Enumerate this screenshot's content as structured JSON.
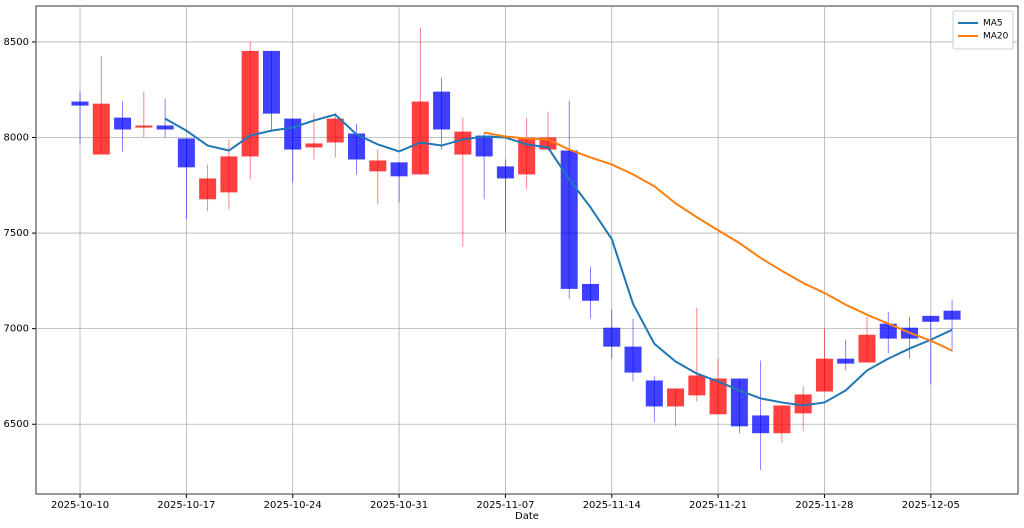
{
  "chart_data": {
    "type": "candlestick",
    "xlabel": "Date",
    "categories": [
      "2025-10-10",
      null,
      null,
      null,
      null,
      "2025-10-17",
      null,
      null,
      null,
      null,
      "2025-10-24",
      null,
      null,
      null,
      null,
      "2025-10-31",
      null,
      null,
      null,
      null,
      "2025-11-07",
      null,
      null,
      null,
      null,
      "2025-11-14",
      null,
      null,
      null,
      null,
      "2025-11-21",
      null,
      null,
      null,
      null,
      "2025-11-28",
      null,
      null,
      null,
      null,
      "2025-12-05",
      null
    ],
    "open": [
      8188,
      7911,
      8104,
      8052,
      8063,
      7995,
      7677,
      7713,
      7901,
      8453,
      8099,
      7948,
      7974,
      8021,
      7823,
      7870,
      7807,
      8240,
      7911,
      8010,
      7849,
      7807,
      7937,
      7932,
      7234,
      7005,
      6906,
      6729,
      6593,
      6651,
      6552,
      6739,
      6546,
      6453,
      6557,
      6671,
      6843,
      6823,
      7026,
      7005,
      7067,
      7094
    ],
    "high": [
      8240,
      8427,
      8188,
      8240,
      8203,
      7995,
      7859,
      7990,
      8500,
      8453,
      8099,
      8125,
      8130,
      8073,
      7937,
      7870,
      8573,
      8313,
      8104,
      8026,
      7885,
      8104,
      8135,
      8193,
      7323,
      7099,
      7052,
      6750,
      6687,
      7109,
      6843,
      6739,
      6833,
      6598,
      6697,
      7000,
      6942,
      7062,
      7088,
      7062,
      7067,
      7151
    ],
    "low": [
      7969,
      7911,
      7927,
      8000,
      8000,
      7573,
      7614,
      7625,
      7781,
      8042,
      7766,
      7885,
      7896,
      7807,
      7651,
      7661,
      7807,
      7937,
      7427,
      7677,
      7505,
      7729,
      7937,
      7156,
      7052,
      6843,
      6724,
      6510,
      6490,
      6619,
      6552,
      6453,
      6260,
      6406,
      6463,
      6671,
      6781,
      6823,
      6870,
      6843,
      6708,
      6880
    ],
    "close": [
      8167,
      8177,
      8042,
      8063,
      8042,
      7844,
      7786,
      7901,
      8453,
      8125,
      7937,
      7969,
      8099,
      7885,
      7880,
      7797,
      8188,
      8042,
      8031,
      7901,
      7786,
      8000,
      8000,
      7208,
      7146,
      6906,
      6770,
      6593,
      6687,
      6755,
      6739,
      6489,
      6453,
      6598,
      6656,
      6843,
      6817,
      6968,
      6948,
      6948,
      7036,
      7047
    ],
    "up_color": "#ff0000",
    "down_color": "#0000ff",
    "series": [
      {
        "name": "MA5",
        "color": "#1f77b4",
        "values": [
          null,
          null,
          null,
          null,
          8099,
          8036,
          7958,
          7932,
          8010,
          8036,
          8052,
          8089,
          8120,
          8016,
          7964,
          7927,
          7974,
          7958,
          7990,
          8005,
          8000,
          7964,
          7948,
          7781,
          7635,
          7469,
          7130,
          6921,
          6828,
          6765,
          6724,
          6677,
          6635,
          6614,
          6598,
          6614,
          6677,
          6781,
          6843,
          6896,
          6942,
          6994
        ]
      },
      {
        "name": "MA20",
        "color": "#ff7f0e",
        "values": [
          null,
          null,
          null,
          null,
          null,
          null,
          null,
          null,
          null,
          null,
          null,
          null,
          null,
          null,
          null,
          null,
          null,
          null,
          null,
          8026,
          8005,
          7995,
          7990,
          7937,
          7896,
          7859,
          7807,
          7745,
          7656,
          7583,
          7515,
          7448,
          7370,
          7302,
          7239,
          7187,
          7125,
          7073,
          7026,
          6979,
          6937,
          6885
        ]
      }
    ],
    "xlim": [
      -2.07,
      44.1
    ],
    "ylim": [
      6135,
      8688
    ],
    "yticks": [
      6500,
      7000,
      7500,
      8000,
      8500
    ],
    "grid": true,
    "legend": "upper right"
  }
}
